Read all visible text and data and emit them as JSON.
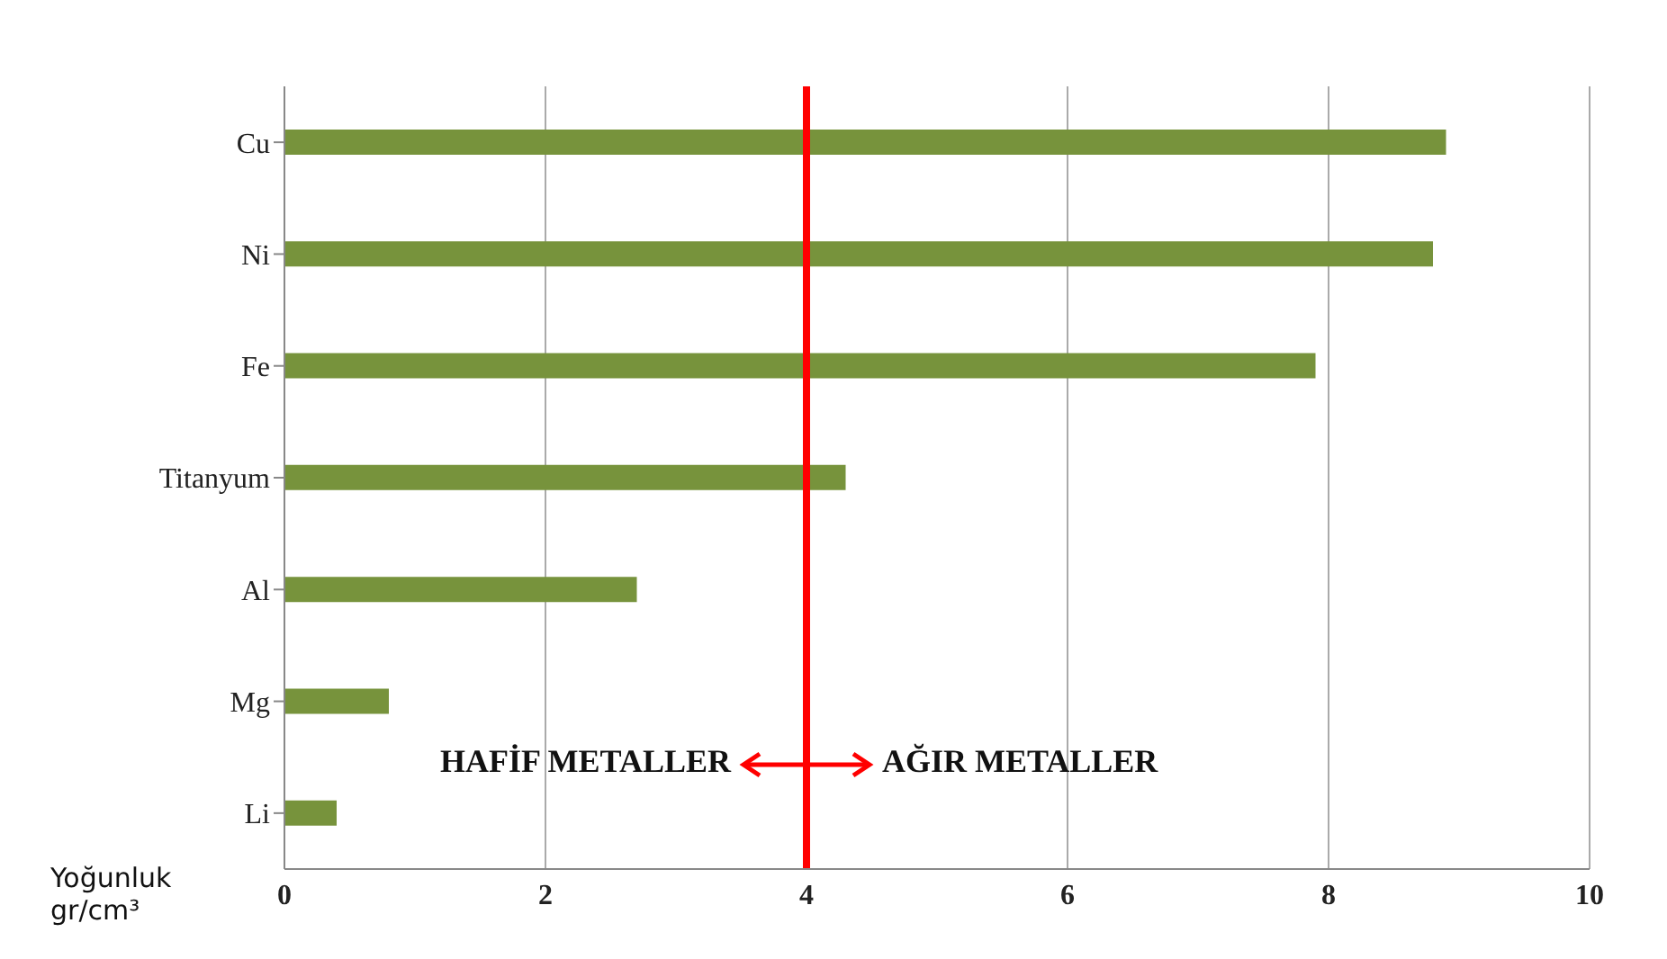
{
  "chart_data": {
    "type": "bar",
    "orientation": "horizontal",
    "xlabel": "Yoğunluk gr/cm³",
    "categories": [
      "Cu",
      "Ni",
      "Fe",
      "Titanyum",
      "Al",
      "Mg",
      "Li"
    ],
    "values": [
      8.9,
      8.8,
      7.9,
      4.3,
      2.7,
      0.8,
      0.4
    ],
    "color": "#77933c",
    "xlim": [
      0,
      10
    ],
    "xticks": [
      0,
      2,
      4,
      6,
      8,
      10
    ],
    "grid": "x",
    "ref_lines": [
      {
        "axis": "x",
        "value": 4,
        "color": "#ff0000"
      }
    ],
    "annotations": [
      "HAFİF METALLER",
      "AĞIR METALLER"
    ]
  }
}
